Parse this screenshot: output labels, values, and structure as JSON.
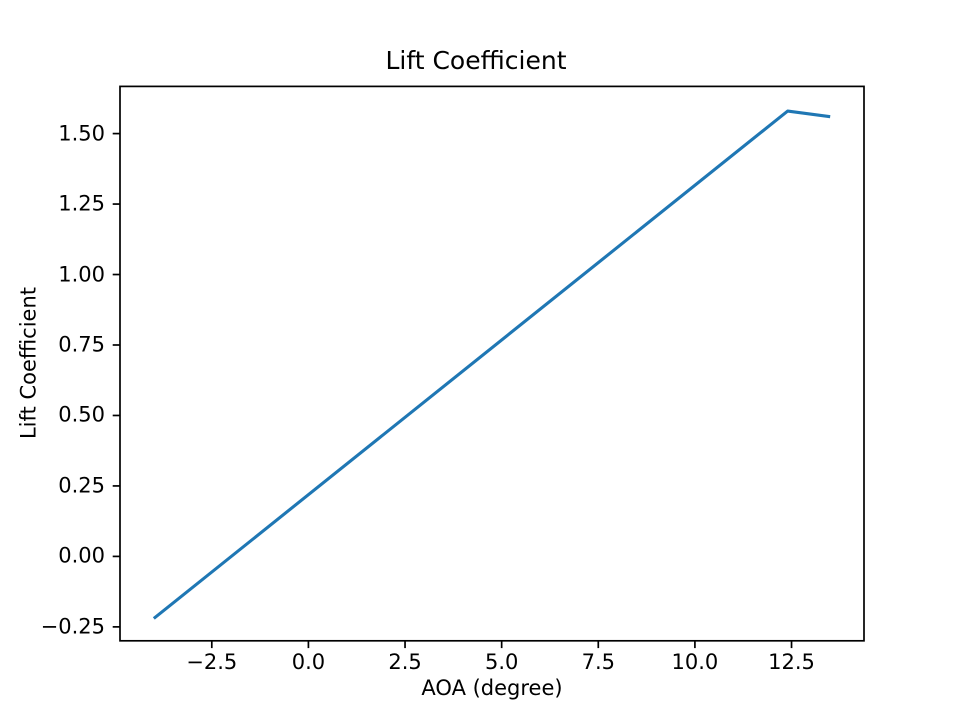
{
  "figure": {
    "background": "#ffffff",
    "text_color": "#000000",
    "axes_color": "#000000"
  },
  "chart_data": {
    "type": "line",
    "title": "Lift Coefficient",
    "xlabel": "AOA (degree)",
    "ylabel": "Lift Coefficient",
    "series": [
      {
        "name": "lift-coefficient-curve",
        "color": "#1f77b4",
        "x": [
          -4.0,
          12.4,
          13.5
        ],
        "y": [
          -0.22,
          1.58,
          1.56
        ]
      }
    ],
    "xlim": [
      -4.875,
      14.375
    ],
    "ylim": [
      -0.2994,
      1.6674
    ],
    "x_ticks": {
      "values": [
        -2.5,
        0.0,
        2.5,
        5.0,
        7.5,
        10.0,
        12.5
      ],
      "labels": [
        "−2.5",
        "0.0",
        "2.5",
        "5.0",
        "7.5",
        "10.0",
        "12.5"
      ]
    },
    "y_ticks": {
      "values": [
        -0.25,
        0.0,
        0.25,
        0.5,
        0.75,
        1.0,
        1.25,
        1.5
      ],
      "labels": [
        "−0.25",
        "0.00",
        "0.25",
        "0.50",
        "0.75",
        "1.00",
        "1.25",
        "1.50"
      ]
    },
    "grid": false,
    "legend": "none"
  }
}
